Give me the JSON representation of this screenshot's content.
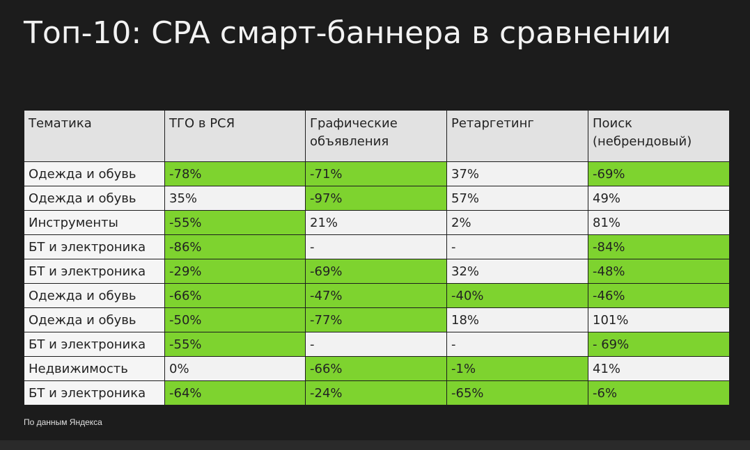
{
  "title": "Топ-10: CPA смарт-баннера в сравнении",
  "table": {
    "headers": [
      "Тематика",
      "ТГО в РСЯ",
      "Графические объявления",
      "Ретаргетинг",
      "Поиск (небрендовый)"
    ],
    "rows": [
      [
        "Одежда и обувь",
        "-78%",
        "-71%",
        "37%",
        "-69%"
      ],
      [
        "Одежда и обувь",
        "35%",
        "-97%",
        "57%",
        "49%"
      ],
      [
        "Инструменты",
        "-55%",
        "21%",
        "2%",
        "81%"
      ],
      [
        "БТ и электроника",
        "-86%",
        "-",
        "-",
        "-84%"
      ],
      [
        "БТ и электроника",
        "-29%",
        "-69%",
        "32%",
        "-48%"
      ],
      [
        "Одежда и обувь",
        "-66%",
        "-47%",
        "-40%",
        "-46%"
      ],
      [
        "Одежда и обувь",
        "-50%",
        "-77%",
        "18%",
        "101%"
      ],
      [
        "БТ и электроника",
        "-55%",
        "-",
        "-",
        "- 69%"
      ],
      [
        "Недвижимость",
        "0%",
        "-66%",
        "-1%",
        "41%"
      ],
      [
        "БТ и электроника",
        "-64%",
        "-24%",
        "-65%",
        "-6%"
      ]
    ],
    "highlight": [
      [
        false,
        true,
        true,
        false,
        true
      ],
      [
        false,
        false,
        true,
        false,
        false
      ],
      [
        false,
        true,
        false,
        false,
        false
      ],
      [
        false,
        true,
        false,
        false,
        true
      ],
      [
        false,
        true,
        true,
        false,
        true
      ],
      [
        false,
        true,
        true,
        true,
        true
      ],
      [
        false,
        true,
        true,
        false,
        false
      ],
      [
        false,
        true,
        false,
        false,
        true
      ],
      [
        false,
        false,
        true,
        true,
        false
      ],
      [
        false,
        true,
        true,
        true,
        true
      ]
    ]
  },
  "colors": {
    "background": "#1c1c1c",
    "highlight": "#7ed32f",
    "header_bg": "#e2e2e2",
    "cell_bg": "#f2f2f2"
  },
  "footnote": "По данным Яндекса"
}
